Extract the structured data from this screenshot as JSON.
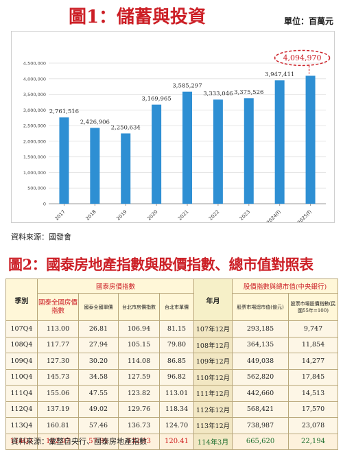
{
  "header": {
    "title": "圖1：儲蓄與投資",
    "unit": "單位：百萬元"
  },
  "chart_data": {
    "type": "bar",
    "title": "圖1：儲蓄與投資",
    "unit": "單位：百萬元",
    "categories": [
      "2017",
      "2018",
      "2019",
      "2020",
      "2021",
      "2022",
      "2023",
      "2024(f)",
      "2025(f)"
    ],
    "values": [
      2761516,
      2426906,
      2250634,
      3169965,
      3585297,
      3333046,
      3375526,
      3947411,
      4094970
    ],
    "value_labels": [
      "2,761,516",
      "2,426,906",
      "2,250,634",
      "3,169,965",
      "3,585,297",
      "3,333,046",
      "3,375,526",
      "3,947,411",
      "4,094,970"
    ],
    "y_ticks": [
      "0",
      "500,000",
      "1,000,000",
      "1,500,000",
      "2,000,000",
      "2,500,000",
      "3,000,000",
      "3,500,000",
      "4,000,000",
      "4,500,000"
    ],
    "ylim": [
      0,
      4500000
    ],
    "grid": true,
    "highlight_index": 8,
    "colors": {
      "bar": "#2e8fd3",
      "highlight": "#cc1f26",
      "axis": "#999999"
    }
  },
  "source1": "資料來源：國發會",
  "table": {
    "title": "圖2：國泰房地產指數與股價指數、總市值對照表",
    "group_housing": "國泰房價指數",
    "group_stock": "股價指數與總市值(中央銀行)",
    "col_season": "季別",
    "col_ym": "年月",
    "sub_headers": [
      "國泰全國房價指數",
      "國泰全國單價",
      "台北市房價指數",
      "台北市單價"
    ],
    "stock_sub_headers": [
      "股票市場總市值(億元)",
      "股票市場股價指數(民國55年=100)"
    ],
    "rows": [
      [
        "107Q4",
        "113.00",
        "26.81",
        "106.94",
        "81.15",
        "107年12月",
        "293,185",
        "9,747"
      ],
      [
        "108Q4",
        "117.77",
        "27.94",
        "105.15",
        "79.80",
        "108年12月",
        "364,135",
        "11,854"
      ],
      [
        "109Q4",
        "127.30",
        "30.20",
        "114.08",
        "86.85",
        "109年12月",
        "449,038",
        "14,277"
      ],
      [
        "110Q4",
        "145.73",
        "34.58",
        "127.59",
        "96.82",
        "110年12月",
        "562,820",
        "17,845"
      ],
      [
        "111Q4",
        "155.06",
        "47.55",
        "123.82",
        "113.01",
        "111年12月",
        "442,660",
        "14,513"
      ],
      [
        "112Q4",
        "137.19",
        "49.02",
        "129.76",
        "118.34",
        "112年12月",
        "568,421",
        "17,570"
      ],
      [
        "113Q4",
        "160.81",
        "57.46",
        "136.73",
        "124.70",
        "113年12月",
        "738,987",
        "23,078"
      ]
    ],
    "last_row": [
      "114Q1",
      "162.07",
      "57.91",
      "132.03",
      "120.41",
      "114年3月",
      "665,620",
      "22,194"
    ]
  },
  "source2": "資料來源：彙整自央行、國泰房地產指數"
}
